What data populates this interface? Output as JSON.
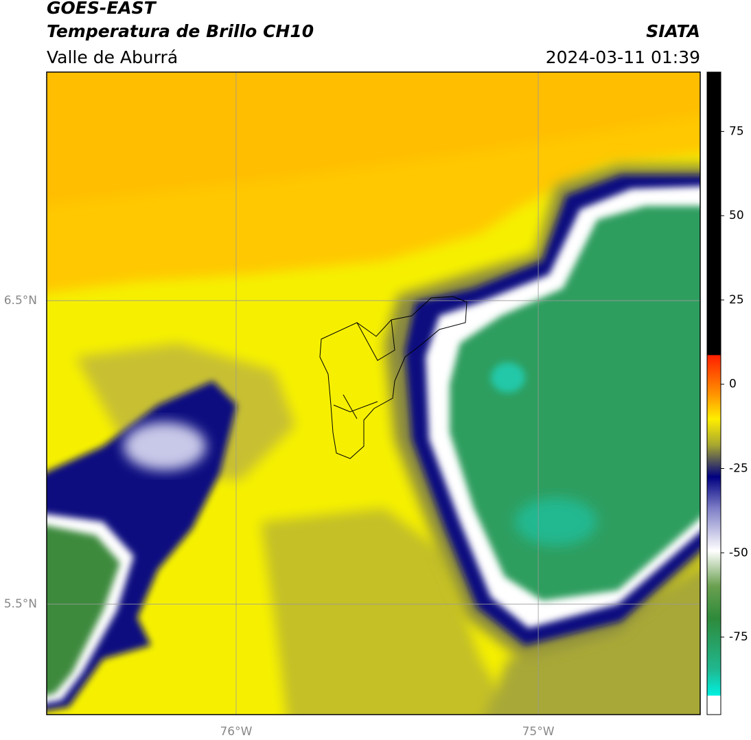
{
  "header": {
    "title": "GOES-EAST",
    "subtitle": "Temperatura de Brillo CH10",
    "region": "Valle de Aburrá",
    "source": "SIATA",
    "datetime": "2024-03-11 01:39"
  },
  "map": {
    "lonlim": [
      -76.627,
      -74.464
    ],
    "latlim": [
      5.136,
      7.253
    ],
    "lon_ticks": [
      {
        "value": -76,
        "label": "76°W"
      },
      {
        "value": -75,
        "label": "75°W"
      }
    ],
    "lat_ticks": [
      {
        "value": 6.5,
        "label": "6.5°N"
      },
      {
        "value": 5.5,
        "label": "5.5°N"
      }
    ]
  },
  "colorbar": {
    "lim": [
      -98,
      92.6
    ],
    "ticks": [
      75,
      50,
      25,
      0,
      -25,
      -50,
      -75
    ]
  }
}
